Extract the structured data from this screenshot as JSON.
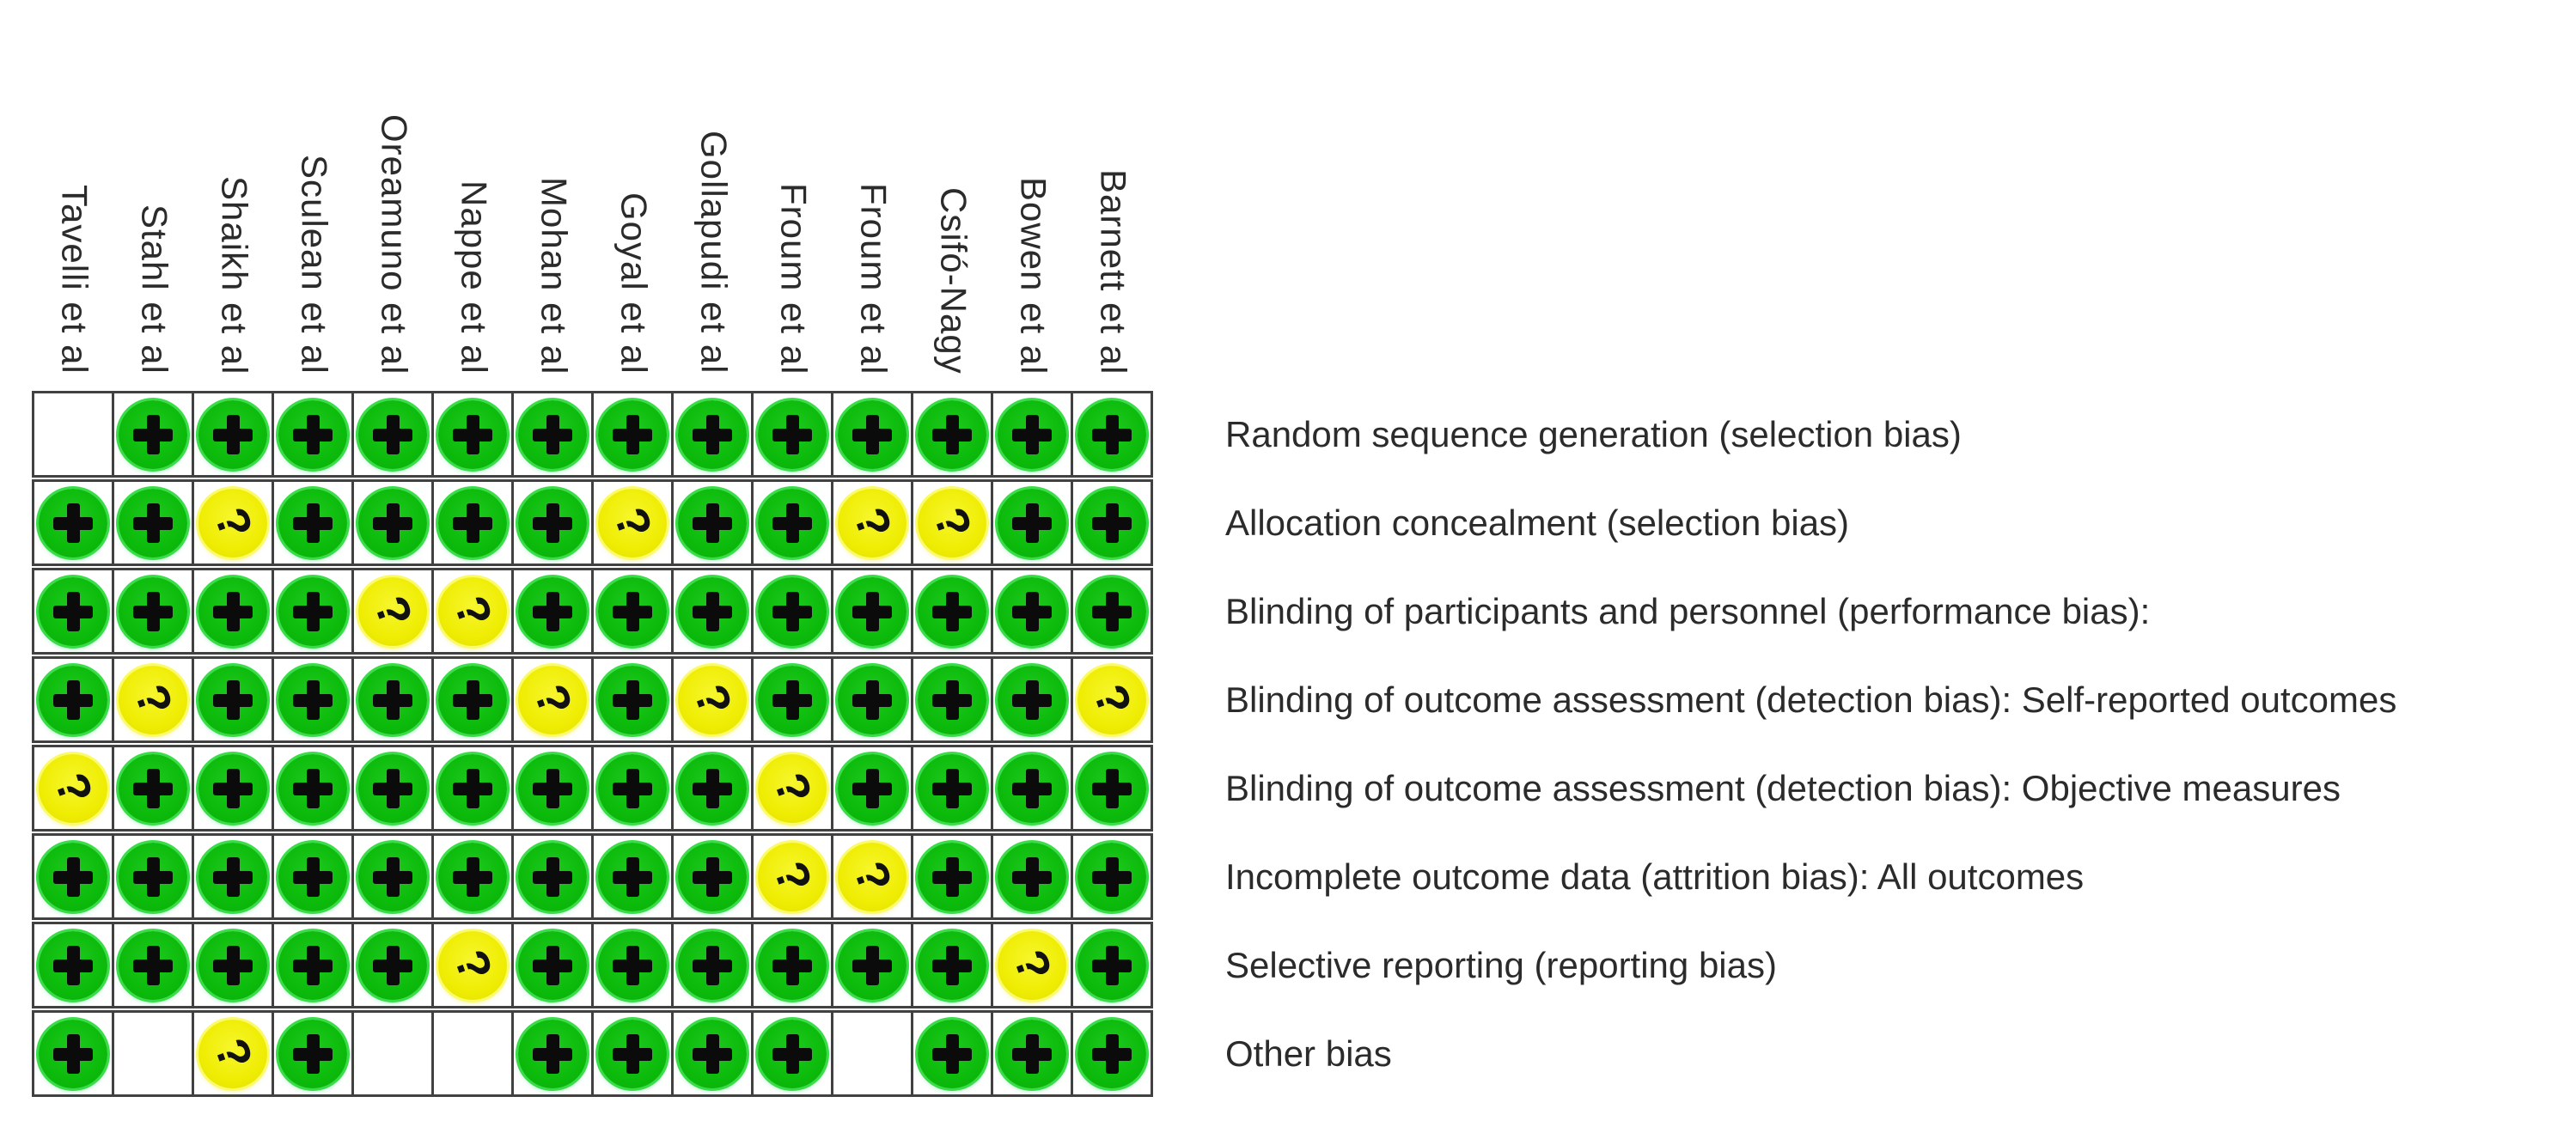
{
  "figure_name": "risk-of-bias-summary",
  "chart_data": {
    "type": "heatmap",
    "columns": [
      "Tavelli et al",
      "Stahl et al",
      "Shaikh et al",
      "Sculean et al",
      "Oreamuno et al",
      "Nappe et al",
      "Mohan et al",
      "Goyal et al",
      "Gollapudi et al",
      "Froum et al",
      "Froum et al",
      "Csifó-Nagy",
      "Bowen et al",
      "Barnett et al"
    ],
    "rows": [
      "Random sequence generation (selection bias)",
      "Allocation concealment (selection bias)",
      "Blinding of participants and personnel (performance bias):",
      "Blinding of outcome assessment (detection bias): Self-reported outcomes",
      "Blinding of outcome assessment (detection bias): Objective measures",
      "Incomplete outcome data (attrition bias): All outcomes",
      "Selective reporting (reporting bias)",
      "Other bias"
    ],
    "cells": [
      [
        "",
        "+",
        "+",
        "+",
        "+",
        "+",
        "+",
        "+",
        "+",
        "+",
        "+",
        "+",
        "+",
        "+"
      ],
      [
        "+",
        "+",
        "?",
        "+",
        "+",
        "+",
        "+",
        "?",
        "+",
        "+",
        "?",
        "?",
        "+",
        "+"
      ],
      [
        "+",
        "+",
        "+",
        "+",
        "?",
        "?",
        "+",
        "+",
        "+",
        "+",
        "+",
        "+",
        "+",
        "+"
      ],
      [
        "+",
        "?",
        "+",
        "+",
        "+",
        "+",
        "?",
        "+",
        "?",
        "+",
        "+",
        "+",
        "+",
        "?"
      ],
      [
        "?",
        "+",
        "+",
        "+",
        "+",
        "+",
        "+",
        "+",
        "+",
        "?",
        "+",
        "+",
        "+",
        "+"
      ],
      [
        "+",
        "+",
        "+",
        "+",
        "+",
        "+",
        "+",
        "+",
        "+",
        "?",
        "?",
        "+",
        "+",
        "+"
      ],
      [
        "+",
        "+",
        "+",
        "+",
        "+",
        "?",
        "+",
        "+",
        "+",
        "+",
        "+",
        "+",
        "?",
        "+"
      ],
      [
        "+",
        "",
        "?",
        "+",
        "",
        "",
        "+",
        "+",
        "+",
        "+",
        "",
        "+",
        "+",
        "+"
      ]
    ],
    "cell_symbols": {
      "+": "green circle with plus",
      "?": "yellow circle with question mark",
      "": "empty cell"
    },
    "colors": {
      "green": "#0cbb0c",
      "yellow": "#efed03",
      "grid_line": "#414141",
      "label_text": "#2b2b2b",
      "symbol": "#0b0b0b"
    },
    "layout": {
      "legend_position": "none",
      "grid": "on",
      "column_labels": "rotated-vertical-top",
      "row_labels": "right"
    }
  }
}
